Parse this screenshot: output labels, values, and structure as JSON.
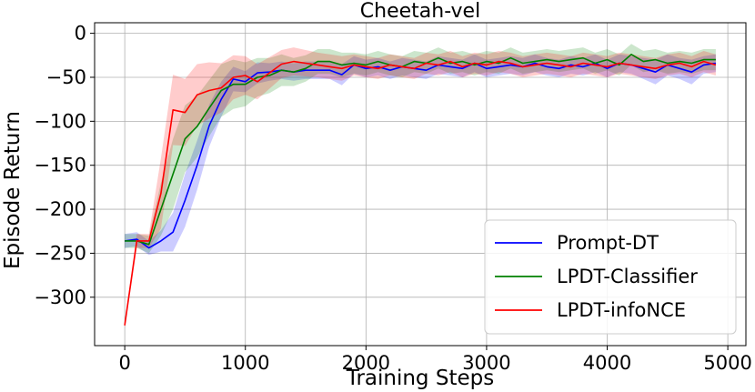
{
  "chart_data": {
    "type": "line",
    "title": "Cheetah-vel",
    "xlabel": "Training Steps",
    "ylabel": "Episode Return",
    "xlim": [
      -250,
      5150
    ],
    "ylim": [
      -355,
      12
    ],
    "xticks": [
      0,
      1000,
      2000,
      3000,
      4000,
      5000
    ],
    "yticks": [
      0,
      -50,
      -100,
      -150,
      -200,
      -250,
      -300
    ],
    "ytick_labels": [
      "0",
      "−50",
      "−100",
      "−150",
      "−200",
      "−250",
      "−300"
    ],
    "grid": true,
    "legend_position": "lower-right",
    "x": [
      0,
      100,
      200,
      300,
      400,
      500,
      600,
      700,
      800,
      900,
      1000,
      1100,
      1200,
      1300,
      1400,
      1500,
      1600,
      1700,
      1800,
      1900,
      2000,
      2100,
      2200,
      2300,
      2400,
      2500,
      2600,
      2700,
      2800,
      2900,
      3000,
      3100,
      3200,
      3300,
      3400,
      3500,
      3600,
      3700,
      3800,
      3900,
      4000,
      4100,
      4200,
      4300,
      4400,
      4500,
      4600,
      4700,
      4800,
      4900
    ],
    "series": [
      {
        "name": "Prompt-DT",
        "color": "#0000ff",
        "values": [
          -236,
          -234,
          -244,
          -236,
          -226,
          -190,
          -150,
          -105,
          -75,
          -52,
          -55,
          -45,
          -44,
          -42,
          -44,
          -42,
          -42,
          -42,
          -47,
          -36,
          -40,
          -38,
          -42,
          -38,
          -40,
          -42,
          -36,
          -38,
          -40,
          -34,
          -40,
          -38,
          -36,
          -38,
          -34,
          -38,
          -40,
          -36,
          -38,
          -34,
          -40,
          -34,
          -36,
          -40,
          -44,
          -36,
          -40,
          -44,
          -36,
          -34
        ],
        "band": [
          8,
          8,
          8,
          12,
          22,
          30,
          28,
          24,
          20,
          14,
          12,
          12,
          10,
          10,
          10,
          10,
          10,
          10,
          12,
          10,
          10,
          10,
          10,
          10,
          10,
          10,
          10,
          10,
          10,
          10,
          10,
          10,
          10,
          10,
          10,
          10,
          10,
          10,
          10,
          10,
          10,
          10,
          10,
          12,
          14,
          12,
          12,
          14,
          10,
          10
        ]
      },
      {
        "name": "LPDT-Classifier",
        "color": "#008000",
        "values": [
          -236,
          -236,
          -240,
          -200,
          -160,
          -120,
          -106,
          -85,
          -65,
          -58,
          -58,
          -50,
          -48,
          -42,
          -44,
          -40,
          -32,
          -32,
          -36,
          -34,
          -36,
          -32,
          -36,
          -38,
          -32,
          -34,
          -28,
          -34,
          -32,
          -36,
          -32,
          -34,
          -28,
          -34,
          -32,
          -30,
          -32,
          -30,
          -28,
          -34,
          -30,
          -36,
          -24,
          -32,
          -30,
          -34,
          -32,
          -34,
          -30,
          -30
        ],
        "band": [
          8,
          8,
          10,
          30,
          40,
          38,
          35,
          32,
          30,
          28,
          25,
          22,
          20,
          18,
          16,
          15,
          14,
          14,
          14,
          12,
          12,
          12,
          12,
          12,
          12,
          12,
          12,
          12,
          12,
          12,
          12,
          12,
          12,
          12,
          12,
          12,
          12,
          12,
          12,
          12,
          12,
          12,
          12,
          12,
          12,
          12,
          12,
          12,
          12,
          12
        ]
      },
      {
        "name": "LPDT-infoNCE",
        "color": "#ff0000",
        "values": [
          -332,
          -236,
          -236,
          -182,
          -87,
          -90,
          -70,
          -65,
          -62,
          -50,
          -48,
          -55,
          -45,
          -35,
          -32,
          -34,
          -36,
          -38,
          -40,
          -36,
          -38,
          -40,
          -36,
          -38,
          -40,
          -34,
          -36,
          -32,
          -38,
          -34,
          -36,
          -32,
          -34,
          -38,
          -36,
          -34,
          -36,
          -38,
          -34,
          -36,
          -38,
          -34,
          -36,
          -38,
          -40,
          -36,
          -34,
          -38,
          -32,
          -36
        ],
        "band": [
          4,
          8,
          8,
          40,
          40,
          38,
          35,
          32,
          28,
          25,
          22,
          20,
          18,
          16,
          16,
          15,
          14,
          14,
          14,
          12,
          12,
          12,
          12,
          12,
          12,
          12,
          12,
          12,
          12,
          12,
          12,
          12,
          12,
          12,
          12,
          12,
          12,
          12,
          12,
          12,
          12,
          12,
          12,
          12,
          12,
          12,
          12,
          12,
          12,
          12
        ]
      }
    ]
  }
}
